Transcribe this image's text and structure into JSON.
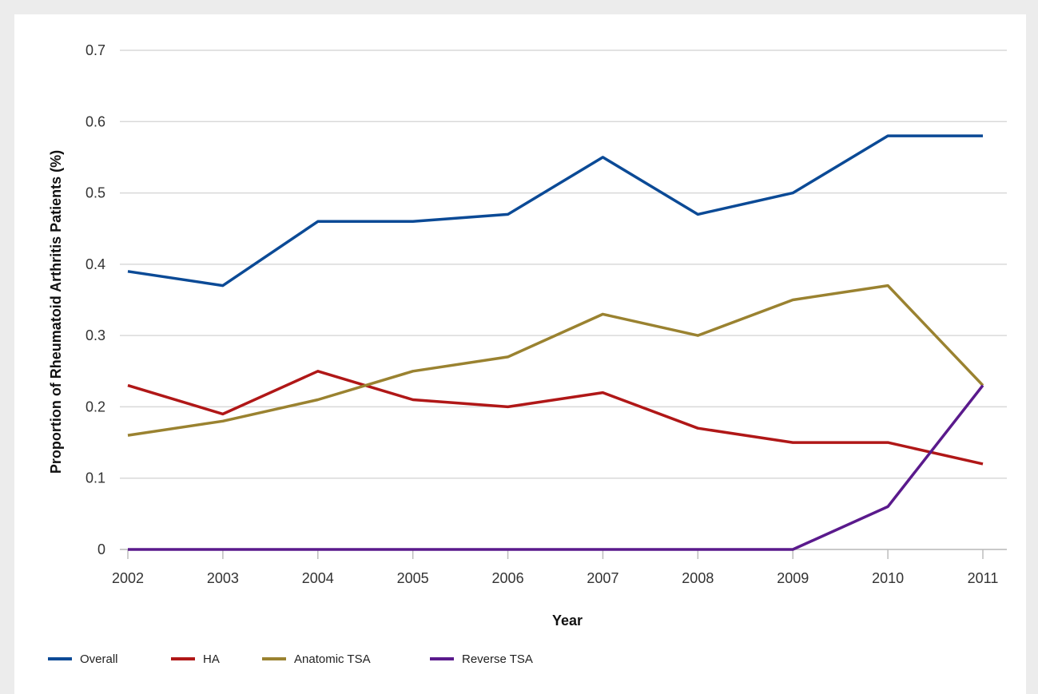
{
  "chart_data": {
    "type": "line",
    "title": "",
    "xlabel": "Year",
    "ylabel": "Proportion of Rheumatoid Arthritis Patients (%)",
    "x": [
      "2002",
      "2003",
      "2004",
      "2005",
      "2006",
      "2007",
      "2008",
      "2009",
      "2010",
      "2011"
    ],
    "y_ticks": [
      "0",
      "0.1",
      "0.2",
      "0.3",
      "0.4",
      "0.5",
      "0.6",
      "0.7"
    ],
    "ylim": [
      0,
      0.7
    ],
    "grid": true,
    "legend_position": "bottom-left",
    "series": [
      {
        "name": "Overall",
        "color": "#0b4a96",
        "values": [
          0.39,
          0.37,
          0.46,
          0.46,
          0.47,
          0.55,
          0.47,
          0.5,
          0.58,
          0.58
        ]
      },
      {
        "name": "HA",
        "color": "#b01717",
        "values": [
          0.23,
          0.19,
          0.25,
          0.21,
          0.2,
          0.22,
          0.17,
          0.15,
          0.15,
          0.12
        ]
      },
      {
        "name": "Anatomic TSA",
        "color": "#9a8230",
        "values": [
          0.16,
          0.18,
          0.21,
          0.25,
          0.27,
          0.33,
          0.3,
          0.35,
          0.37,
          0.23
        ]
      },
      {
        "name": "Reverse TSA",
        "color": "#5a1a8c",
        "values": [
          0.0,
          0.0,
          0.0,
          0.0,
          0.0,
          0.0,
          0.0,
          0.0,
          0.06,
          0.23
        ]
      }
    ]
  }
}
